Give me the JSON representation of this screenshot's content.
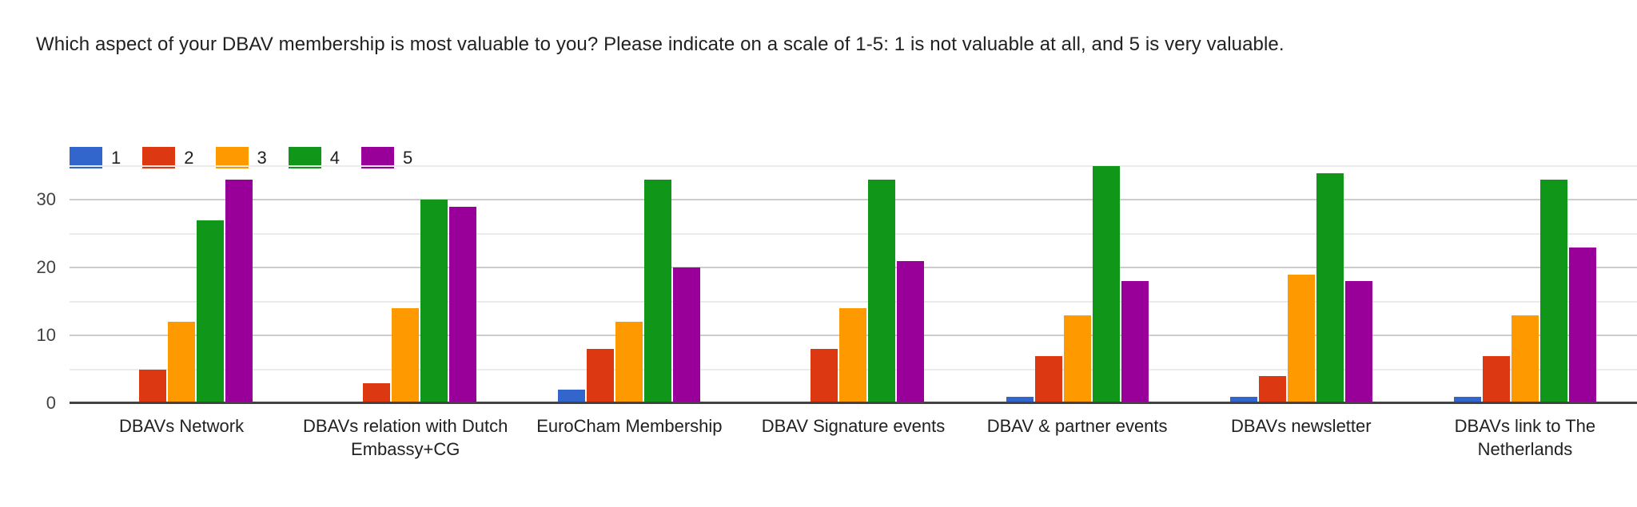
{
  "chart_data": {
    "type": "bar",
    "title": "Which aspect of your DBAV membership is most valuable to you? Please indicate on a scale of 1-5: 1 is not valuable at all, and 5 is very valuable.",
    "categories": [
      "DBAVs Network",
      "DBAVs relation with Dutch Embassy+CG",
      "EuroCham Membership",
      "DBAV Signature events",
      "DBAV & partner events",
      "DBAVs newsletter",
      "DBAVs link to The Netherlands"
    ],
    "series": [
      {
        "name": "1",
        "color": "#3366cc",
        "values": [
          0,
          0,
          2,
          0,
          1,
          1,
          1
        ]
      },
      {
        "name": "2",
        "color": "#dc3912",
        "values": [
          5,
          3,
          8,
          8,
          7,
          4,
          7
        ]
      },
      {
        "name": "3",
        "color": "#ff9900",
        "values": [
          12,
          14,
          12,
          14,
          13,
          19,
          13
        ]
      },
      {
        "name": "4",
        "color": "#109618",
        "values": [
          27,
          30,
          33,
          33,
          35,
          34,
          33
        ]
      },
      {
        "name": "5",
        "color": "#990099",
        "values": [
          33,
          29,
          20,
          21,
          18,
          18,
          23
        ]
      }
    ],
    "xlabel": "",
    "ylabel": "",
    "ylim": [
      0,
      35
    ],
    "yticks": [
      0,
      10,
      20,
      30
    ],
    "gridlines_major": [
      10,
      20,
      30
    ],
    "gridlines_minor": [
      5,
      15,
      25,
      35
    ],
    "grid": true,
    "legend_position": "top-left"
  },
  "colors": {
    "background": "#ffffff",
    "title_text": "#212121",
    "axis_tick_text": "#424242",
    "category_text": "#212121",
    "gridline_major": "#cccccc",
    "gridline_minor": "#ebebeb",
    "baseline": "#424242"
  }
}
